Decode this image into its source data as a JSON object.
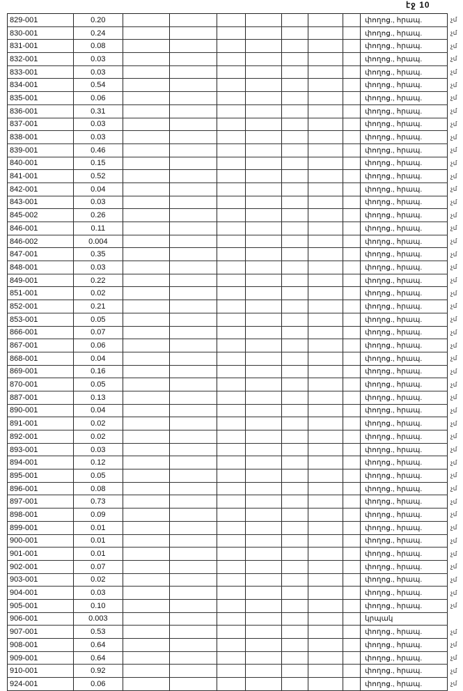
{
  "page_number": "էջ 10",
  "rows": [
    {
      "id": "829-001",
      "value": "0.20",
      "desc": "փողոց., հրապ.",
      "mark": "չմ"
    },
    {
      "id": "830-001",
      "value": "0.24",
      "desc": "փողոց., հրապ.",
      "mark": "չմ"
    },
    {
      "id": "831-001",
      "value": "0.08",
      "desc": "փողոց., հրապ.",
      "mark": "չմ"
    },
    {
      "id": "832-001",
      "value": "0.03",
      "desc": "փողոց., հրապ.",
      "mark": "չմ"
    },
    {
      "id": "833-001",
      "value": "0.03",
      "desc": "փողոց., հրապ.",
      "mark": "չմ"
    },
    {
      "id": "834-001",
      "value": "0.54",
      "desc": "փողոց., հրապ.",
      "mark": "չմ"
    },
    {
      "id": "835-001",
      "value": "0.06",
      "desc": "փողոց., հրապ.",
      "mark": "չմ"
    },
    {
      "id": "836-001",
      "value": "0.31",
      "desc": "փողոց., հրապ.",
      "mark": "չմ"
    },
    {
      "id": "837-001",
      "value": "0.03",
      "desc": "փողոց., հրապ.",
      "mark": "չմ"
    },
    {
      "id": "838-001",
      "value": "0.03",
      "desc": "փողոց., հրապ.",
      "mark": "չմ"
    },
    {
      "id": "839-001",
      "value": "0.46",
      "desc": "փողոց., հրապ.",
      "mark": "չմ"
    },
    {
      "id": "840-001",
      "value": "0.15",
      "desc": "փողոց., հրապ.",
      "mark": "չմ"
    },
    {
      "id": "841-001",
      "value": "0.52",
      "desc": "փողոց., հրապ.",
      "mark": "չմ"
    },
    {
      "id": "842-001",
      "value": "0.04",
      "desc": "փողոց., հրապ.",
      "mark": "չմ"
    },
    {
      "id": "843-001",
      "value": "0.03",
      "desc": "փողոց., հրապ.",
      "mark": "չմ"
    },
    {
      "id": "845-002",
      "value": "0.26",
      "desc": "փողոց., հրապ.",
      "mark": "չմ"
    },
    {
      "id": "846-001",
      "value": "0.11",
      "desc": "փողոց., հրապ.",
      "mark": "չմ"
    },
    {
      "id": "846-002",
      "value": "0.004",
      "desc": "փողոց., հրապ.",
      "mark": "չմ"
    },
    {
      "id": "847-001",
      "value": "0.35",
      "desc": "փողոց., հրապ.",
      "mark": "չմ"
    },
    {
      "id": "848-001",
      "value": "0.03",
      "desc": "փողոց., հրապ.",
      "mark": "չմ"
    },
    {
      "id": "849-001",
      "value": "0.22",
      "desc": "փողոց., հրապ.",
      "mark": "չմ"
    },
    {
      "id": "851-001",
      "value": "0.02",
      "desc": "փողոց., հրապ.",
      "mark": "չմ"
    },
    {
      "id": "852-001",
      "value": "0.21",
      "desc": "փողոց., հրապ.",
      "mark": "չմ"
    },
    {
      "id": "853-001",
      "value": "0.05",
      "desc": "փողոց., հրապ.",
      "mark": "չմ"
    },
    {
      "id": "866-001",
      "value": "0.07",
      "desc": "փողոց., հրապ.",
      "mark": "չմ"
    },
    {
      "id": "867-001",
      "value": "0.06",
      "desc": "փողոց., հրապ.",
      "mark": "չմ"
    },
    {
      "id": "868-001",
      "value": "0.04",
      "desc": "փողոց., հրապ.",
      "mark": "չմ"
    },
    {
      "id": "869-001",
      "value": "0.16",
      "desc": "փողոց., հրապ.",
      "mark": "չմ"
    },
    {
      "id": "870-001",
      "value": "0.05",
      "desc": "փողոց., հրապ.",
      "mark": "չմ"
    },
    {
      "id": "887-001",
      "value": "0.13",
      "desc": "փողոց., հրապ.",
      "mark": "չմ"
    },
    {
      "id": "890-001",
      "value": "0.04",
      "desc": "փողոց., հրապ.",
      "mark": "չմ"
    },
    {
      "id": "891-001",
      "value": "0.02",
      "desc": "փողոց., հրապ.",
      "mark": "չմ"
    },
    {
      "id": "892-001",
      "value": "0.02",
      "desc": "փողոց., հրապ.",
      "mark": "չմ"
    },
    {
      "id": "893-001",
      "value": "0.03",
      "desc": "փողոց., հրապ.",
      "mark": "չմ"
    },
    {
      "id": "894-001",
      "value": "0.12",
      "desc": "փողոց., հրապ.",
      "mark": "չմ"
    },
    {
      "id": "895-001",
      "value": "0.05",
      "desc": "փողոց., հրապ.",
      "mark": "չմ"
    },
    {
      "id": "896-001",
      "value": "0.08",
      "desc": "փողոց., հրապ.",
      "mark": "չմ"
    },
    {
      "id": "897-001",
      "value": "0.73",
      "desc": "փողոց., հրապ.",
      "mark": "չմ"
    },
    {
      "id": "898-001",
      "value": "0.09",
      "desc": "փողոց., հրապ.",
      "mark": "չմ"
    },
    {
      "id": "899-001",
      "value": "0.01",
      "desc": "փողոց., հրապ.",
      "mark": "չմ"
    },
    {
      "id": "900-001",
      "value": "0.01",
      "desc": "փողոց., հրապ.",
      "mark": "չմ"
    },
    {
      "id": "901-001",
      "value": "0.01",
      "desc": "փողոց., հրապ.",
      "mark": "չմ"
    },
    {
      "id": "902-001",
      "value": "0.07",
      "desc": "փողոց., հրապ.",
      "mark": "չմ"
    },
    {
      "id": "903-001",
      "value": "0.02",
      "desc": "փողոց., հրապ.",
      "mark": "չմ"
    },
    {
      "id": "904-001",
      "value": "0.03",
      "desc": "փողոց., հրապ.",
      "mark": "չմ"
    },
    {
      "id": "905-001",
      "value": "0.10",
      "desc": "փողոց., հրապ.",
      "mark": "չմ"
    },
    {
      "id": "906-001",
      "value": "0.003",
      "desc": "կրպակ",
      "mark": ""
    },
    {
      "id": "907-001",
      "value": "0.53",
      "desc": "փողոց., հրապ.",
      "mark": "չմ"
    },
    {
      "id": "908-001",
      "value": "0.64",
      "desc": "փողոց., հրապ.",
      "mark": "չմ"
    },
    {
      "id": "909-001",
      "value": "0.64",
      "desc": "փողոց., հրապ.",
      "mark": "չմ"
    },
    {
      "id": "910-001",
      "value": "0.92",
      "desc": "փողոց., հրապ.",
      "mark": "չմ"
    },
    {
      "id": "924-001",
      "value": "0.06",
      "desc": "փողոց., հրապ.",
      "mark": "չմ"
    }
  ]
}
